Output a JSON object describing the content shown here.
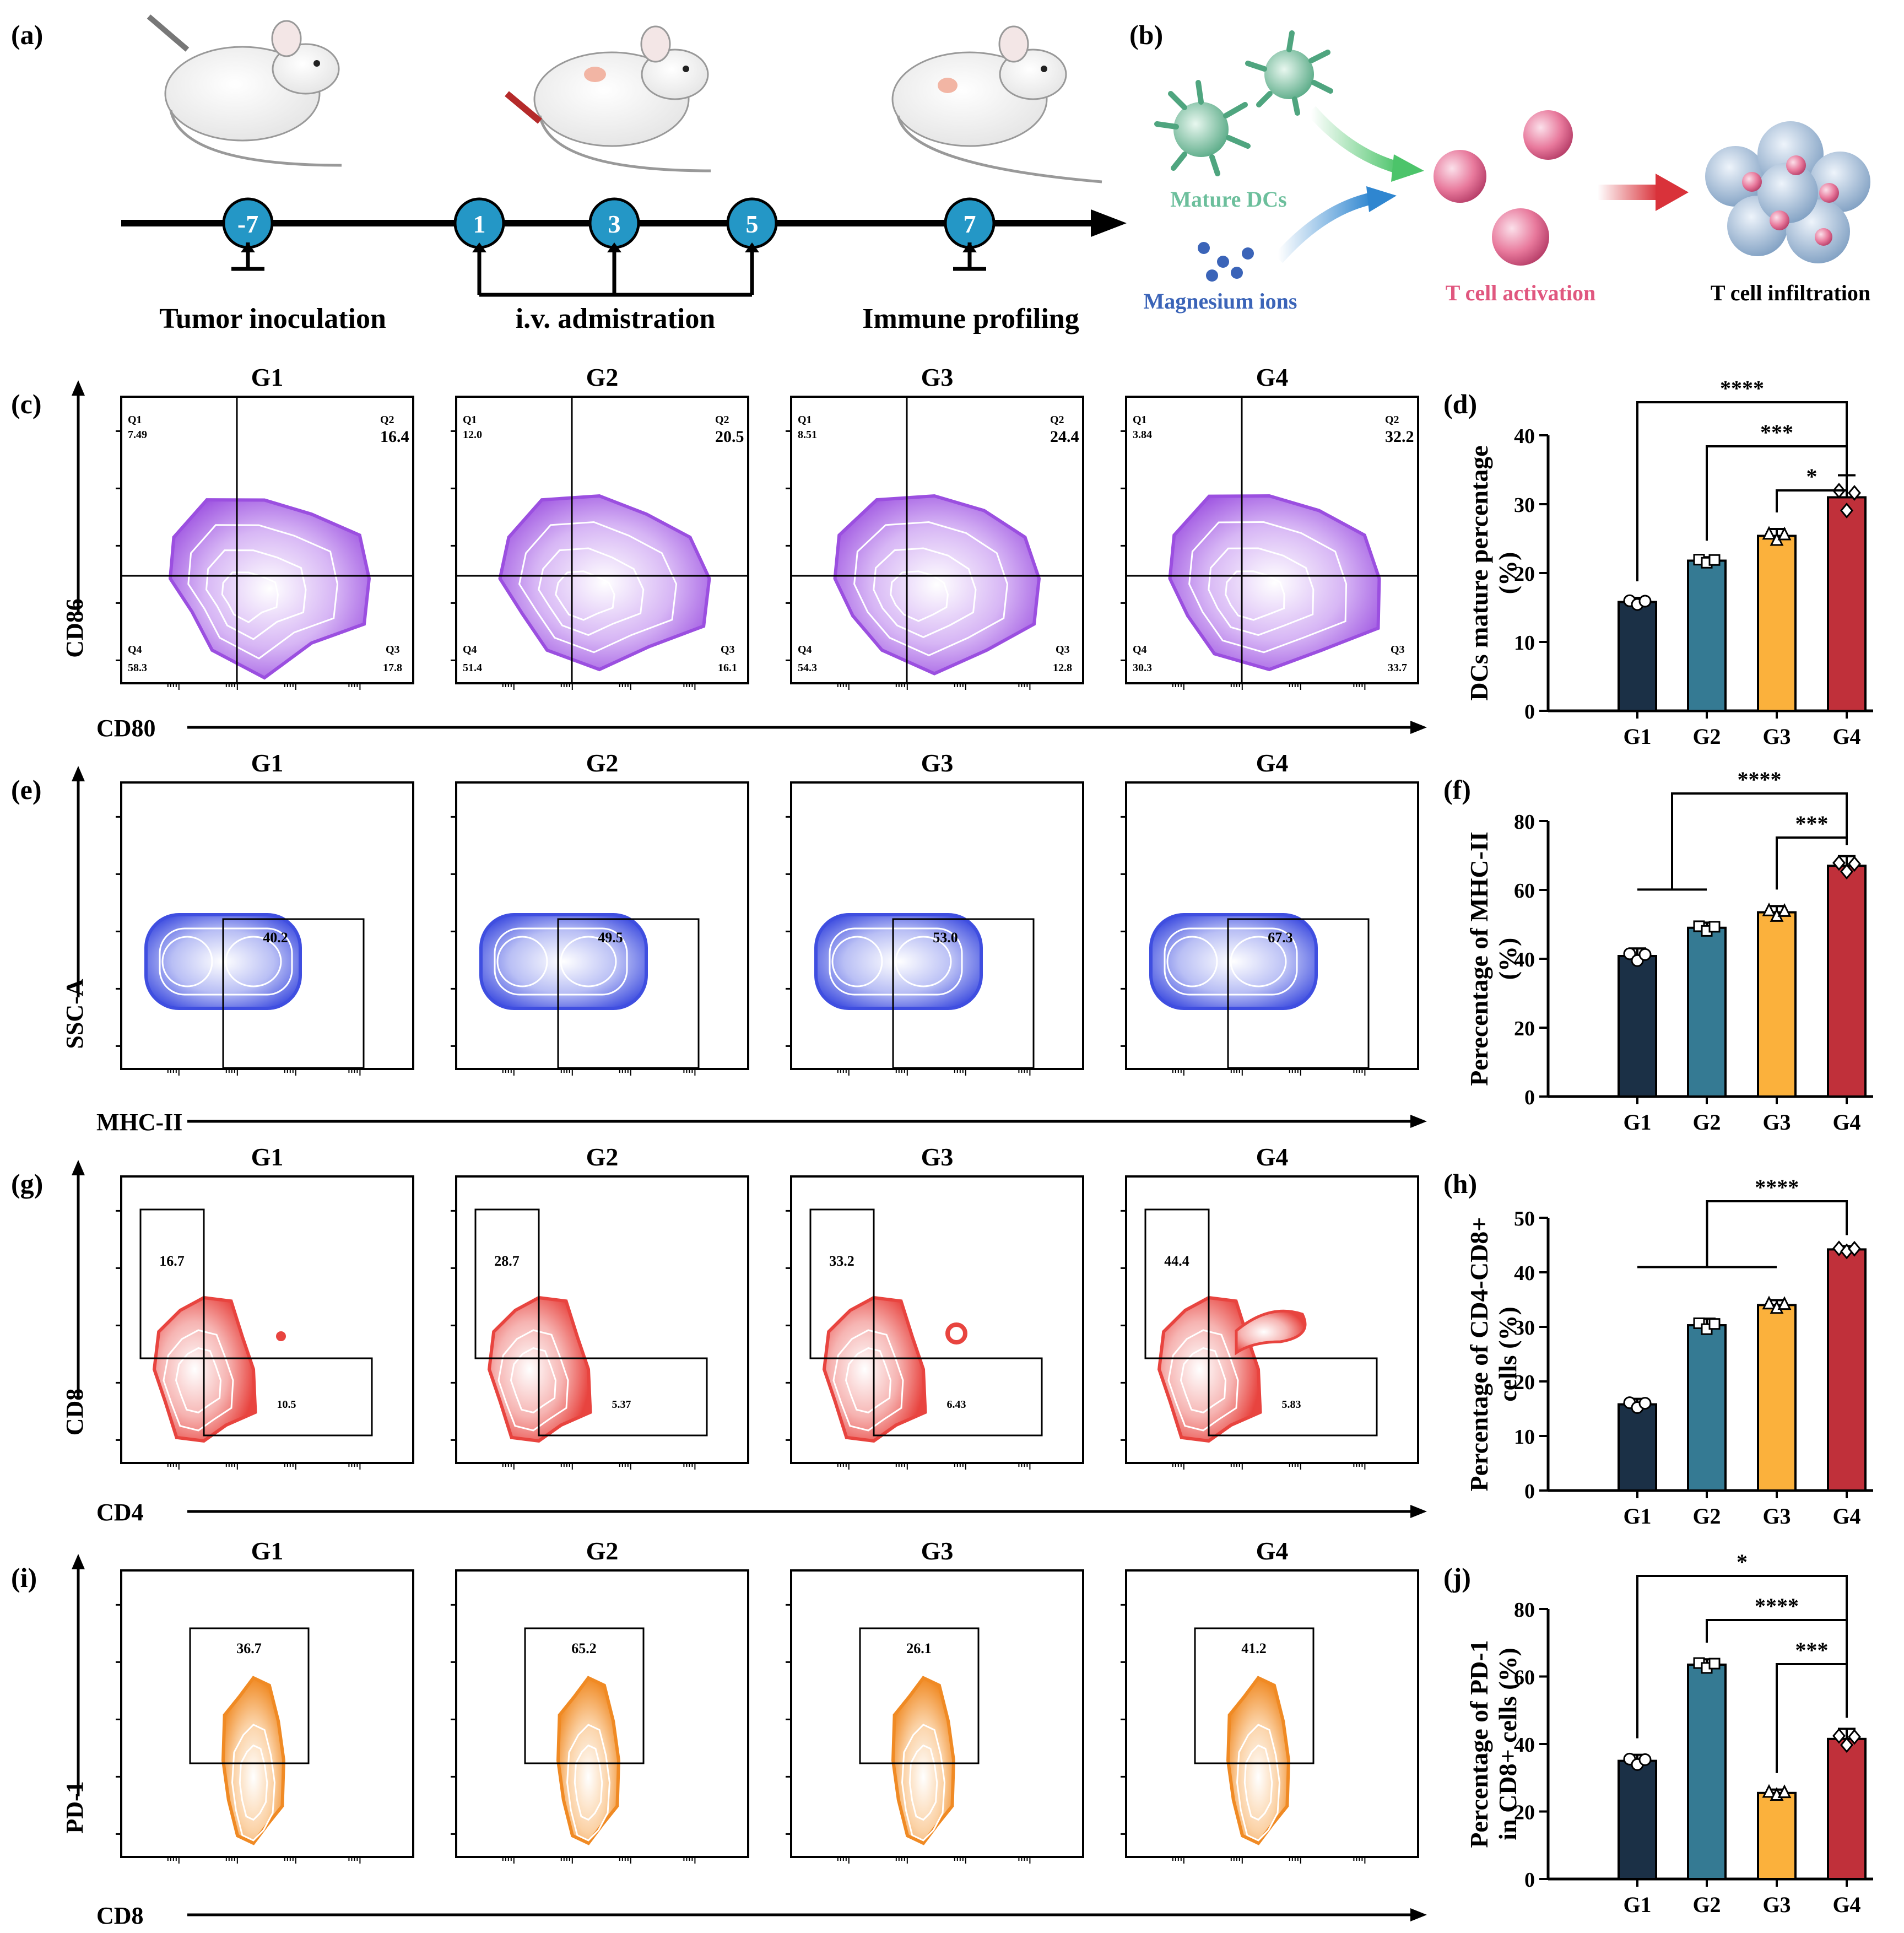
{
  "panel_labels": [
    "(a)",
    "(b)",
    "(c)",
    "(d)",
    "(e)",
    "(f)",
    "(g)",
    "(h)",
    "(i)",
    "(j)"
  ],
  "timeline": {
    "days": [
      "-7",
      "1",
      "3",
      "5",
      "7"
    ],
    "labels": [
      "Tumor inoculation",
      "i.v. admistration",
      "Immune profiling"
    ]
  },
  "mechanism": {
    "mature_dcs": "Mature DCs",
    "magnesium_ions": "Magnesium ions",
    "t_cell_activation": "T cell activation",
    "t_cell_infiltration": "T cell infiltration"
  },
  "groups": [
    "G1",
    "G2",
    "G3",
    "G4"
  ],
  "colors": {
    "G1": "#1b3046",
    "G2": "#357a93",
    "G3": "#fbb13c",
    "G4": "#c0303a",
    "mature_dcs": "#6cbf9c",
    "magnesium": "#3b64b8",
    "t_activation": "#e0577f",
    "cd86_density": "#9b4fe0",
    "mhc_density": "#3f4ee0",
    "cd8_density": "#e8443f",
    "pd1_density": "#f08a24",
    "timeline_node": "#2497c6"
  },
  "flow": {
    "c": {
      "xlabel": "CD80",
      "ylabel": "CD86",
      "quadrant_names": [
        "Q1",
        "Q2",
        "Q3",
        "Q4"
      ],
      "plots": [
        {
          "group": "G1",
          "q1": "7.49",
          "q2": "16.4",
          "q3": "17.8",
          "q4": "58.3"
        },
        {
          "group": "G2",
          "q1": "12.0",
          "q2": "20.5",
          "q3": "16.1",
          "q4": "51.4"
        },
        {
          "group": "G3",
          "q1": "8.51",
          "q2": "24.4",
          "q3": "12.8",
          "q4": "54.3"
        },
        {
          "group": "G4",
          "q1": "3.84",
          "q2": "32.2",
          "q3": "33.7",
          "q4": "30.3"
        }
      ]
    },
    "e": {
      "xlabel": "MHC-II",
      "ylabel": "SSC-A",
      "plots": [
        {
          "group": "G1",
          "gate": "40.2"
        },
        {
          "group": "G2",
          "gate": "49.5"
        },
        {
          "group": "G3",
          "gate": "53.0"
        },
        {
          "group": "G4",
          "gate": "67.3"
        }
      ]
    },
    "g": {
      "xlabel": "CD4",
      "ylabel": "CD8",
      "plots": [
        {
          "group": "G1",
          "cd8": "16.7",
          "cd4": "10.5"
        },
        {
          "group": "G2",
          "cd8": "28.7",
          "cd4": "5.37"
        },
        {
          "group": "G3",
          "cd8": "33.2",
          "cd4": "6.43"
        },
        {
          "group": "G4",
          "cd8": "44.4",
          "cd4": "5.83"
        }
      ]
    },
    "i": {
      "xlabel": "CD8",
      "ylabel": "PD-1",
      "plots": [
        {
          "group": "G1",
          "gate": "36.7"
        },
        {
          "group": "G2",
          "gate": "65.2"
        },
        {
          "group": "G3",
          "gate": "26.1"
        },
        {
          "group": "G4",
          "gate": "41.2"
        }
      ]
    }
  },
  "chart_data": [
    {
      "id": "d",
      "type": "bar",
      "categories": [
        "G1",
        "G2",
        "G3",
        "G4"
      ],
      "values": [
        15.8,
        21.8,
        25.4,
        31.0
      ],
      "errors": [
        0.6,
        0.5,
        1.0,
        3.2
      ],
      "ylabel": "DCs mature percentage (%)",
      "ylim": [
        0,
        40
      ],
      "yticks": [
        0,
        10,
        20,
        30,
        40
      ],
      "significance": [
        {
          "from": "G1",
          "to": "G4",
          "label": "****"
        },
        {
          "from": "G2",
          "to": "G4",
          "label": "***"
        },
        {
          "from": "G3",
          "to": "G4",
          "label": "*"
        }
      ]
    },
    {
      "id": "f",
      "type": "bar",
      "categories": [
        "G1",
        "G2",
        "G3",
        "G4"
      ],
      "values": [
        40.8,
        49.0,
        53.5,
        67.0
      ],
      "errors": [
        2.2,
        1.5,
        1.8,
        2.8
      ],
      "ylabel": "Perecentage of MHC-II (%)",
      "ylim": [
        0,
        80
      ],
      "yticks": [
        0,
        20,
        40,
        60,
        80
      ],
      "significance": [
        {
          "from": "G1-G2",
          "to": "G4",
          "label": "****"
        },
        {
          "from": "G3",
          "to": "G4",
          "label": "***"
        }
      ]
    },
    {
      "id": "h",
      "type": "bar",
      "categories": [
        "G1",
        "G2",
        "G3",
        "G4"
      ],
      "values": [
        15.8,
        30.3,
        34.0,
        44.2
      ],
      "errors": [
        1.0,
        1.2,
        0.9,
        0.6
      ],
      "ylabel": "Percentage of CD4-CD8+ cells (%)",
      "ylim": [
        0,
        50
      ],
      "yticks": [
        0,
        10,
        20,
        30,
        40,
        50
      ],
      "significance": [
        {
          "from": "G1-G3",
          "to": "G4",
          "label": "****"
        }
      ]
    },
    {
      "id": "j",
      "type": "bar",
      "categories": [
        "G1",
        "G2",
        "G3",
        "G4"
      ],
      "values": [
        35.0,
        63.5,
        25.5,
        41.5
      ],
      "errors": [
        1.8,
        1.6,
        1.0,
        3.0
      ],
      "ylabel": "Percentage of PD-1 in CD8+ cells (%)",
      "ylim": [
        0,
        80
      ],
      "yticks": [
        0,
        20,
        40,
        60,
        80
      ],
      "significance": [
        {
          "from": "G1",
          "to": "G4",
          "label": "*"
        },
        {
          "from": "G2",
          "to": "G4",
          "label": "****"
        },
        {
          "from": "G3",
          "to": "G4",
          "label": "***"
        }
      ]
    }
  ]
}
